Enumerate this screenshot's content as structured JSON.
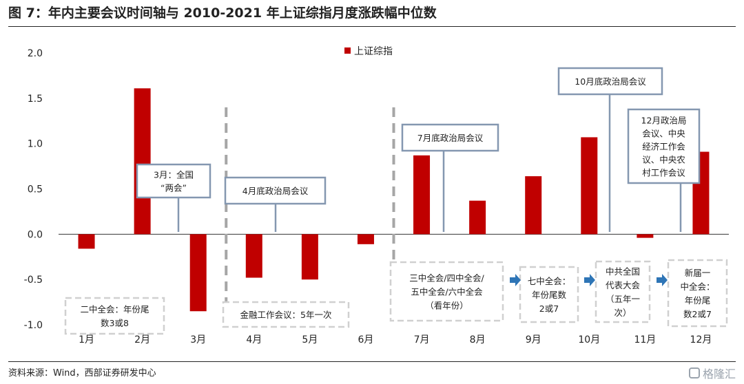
{
  "title": "图 7：年内主要会议时间轴与 2010-2021 年上证综指月度涨跌幅中位数",
  "source": "资料来源：Wind，西部证券研发中心",
  "watermark": "格隆汇",
  "colors": {
    "bar": "#c00000",
    "box_border": "#8497b0",
    "dashed_border": "#d0d0d0",
    "arrow": "#2e75b6",
    "divider": "#a6a6a6"
  },
  "chart_data": {
    "type": "bar",
    "categories": [
      "1月",
      "2月",
      "3月",
      "4月",
      "5月",
      "6月",
      "7月",
      "8月",
      "9月",
      "10月",
      "11月",
      "12月"
    ],
    "series": [
      {
        "name": "上证综指",
        "values": [
          -0.16,
          1.61,
          -0.85,
          -0.48,
          -0.5,
          -0.11,
          0.87,
          0.37,
          0.64,
          1.07,
          -0.04,
          0.91
        ]
      }
    ],
    "ylim": [
      -1.0,
      2.0
    ],
    "yticks": [
      "2.0",
      "1.5",
      "1.0",
      "0.5",
      "0.0",
      "-0.5",
      "-1.0"
    ],
    "ytick_values": [
      2.0,
      1.5,
      1.0,
      0.5,
      0.0,
      -0.5,
      -1.0
    ],
    "legend_position": "top-center",
    "grid": false,
    "dividers_after": [
      "3月",
      "6月"
    ],
    "annotations_solid": [
      {
        "lines": [
          "3月：全国",
          "“两会”"
        ],
        "month": "3月"
      },
      {
        "lines": [
          "4月底政治局会议"
        ],
        "month": "4月"
      },
      {
        "lines": [
          "7月底政治局会议"
        ],
        "month": "7月"
      },
      {
        "lines": [
          "10月底政治局会议"
        ],
        "month": "10月"
      },
      {
        "lines": [
          "12月政治局",
          "会议、中央",
          "经济工作会",
          "议、中央农",
          "村工作会议"
        ],
        "month": "12月"
      }
    ],
    "annotations_dashed": [
      {
        "lines": [
          "二中全会：年份尾",
          "数3或8"
        ]
      },
      {
        "lines": [
          "金融工作会议：5年一次"
        ]
      },
      {
        "lines": [
          "三中全会/四中全会/",
          "五中全会/六中全会",
          "（看年份）"
        ]
      },
      {
        "lines": [
          "七中全会：",
          "年份尾数",
          "2或7"
        ]
      },
      {
        "lines": [
          "中共全国",
          "代表大会",
          "（五年一",
          "次）"
        ]
      },
      {
        "lines": [
          "新届一",
          "中全会：",
          "年份尾",
          "数2或7"
        ]
      }
    ]
  }
}
